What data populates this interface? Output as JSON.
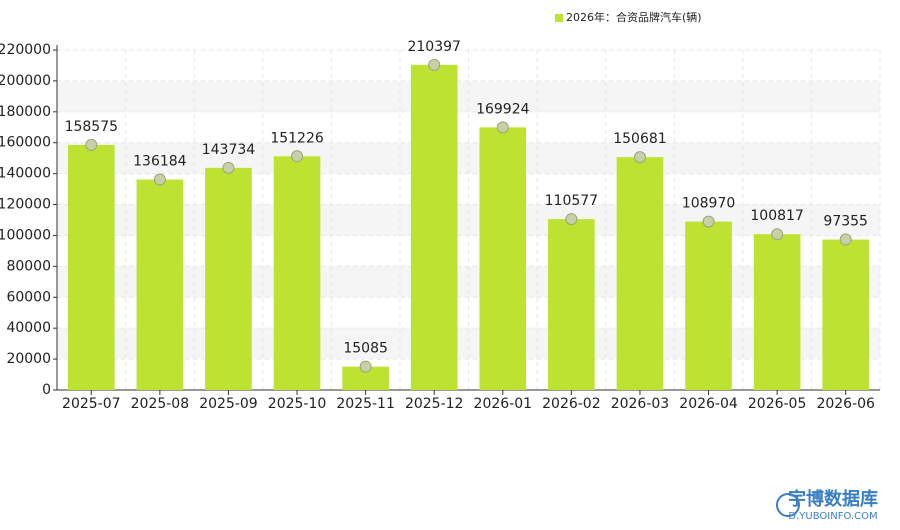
{
  "chart_data": {
    "type": "bar",
    "categories": [
      "2025-07",
      "2025-08",
      "2025-09",
      "2025-10",
      "2025-11",
      "2025-12",
      "2026-01",
      "2026-02",
      "2026-03",
      "2026-04",
      "2026-05",
      "2026-06"
    ],
    "series": [
      {
        "name": "2026年：合资品牌汽车(辆)",
        "color": "#bde232",
        "values": [
          158575,
          136184,
          143734,
          151226,
          15085,
          210397,
          169924,
          110577,
          150681,
          108970,
          100817,
          97355
        ]
      }
    ],
    "ylim": [
      0,
      220000
    ],
    "yticks": [
      0,
      20000,
      40000,
      60000,
      80000,
      100000,
      120000,
      140000,
      160000,
      180000,
      200000,
      220000
    ],
    "grid": true,
    "legend": "top-right"
  },
  "watermark": {
    "name": "宇博数据库",
    "url": "D.YUBOINFO.COM"
  }
}
